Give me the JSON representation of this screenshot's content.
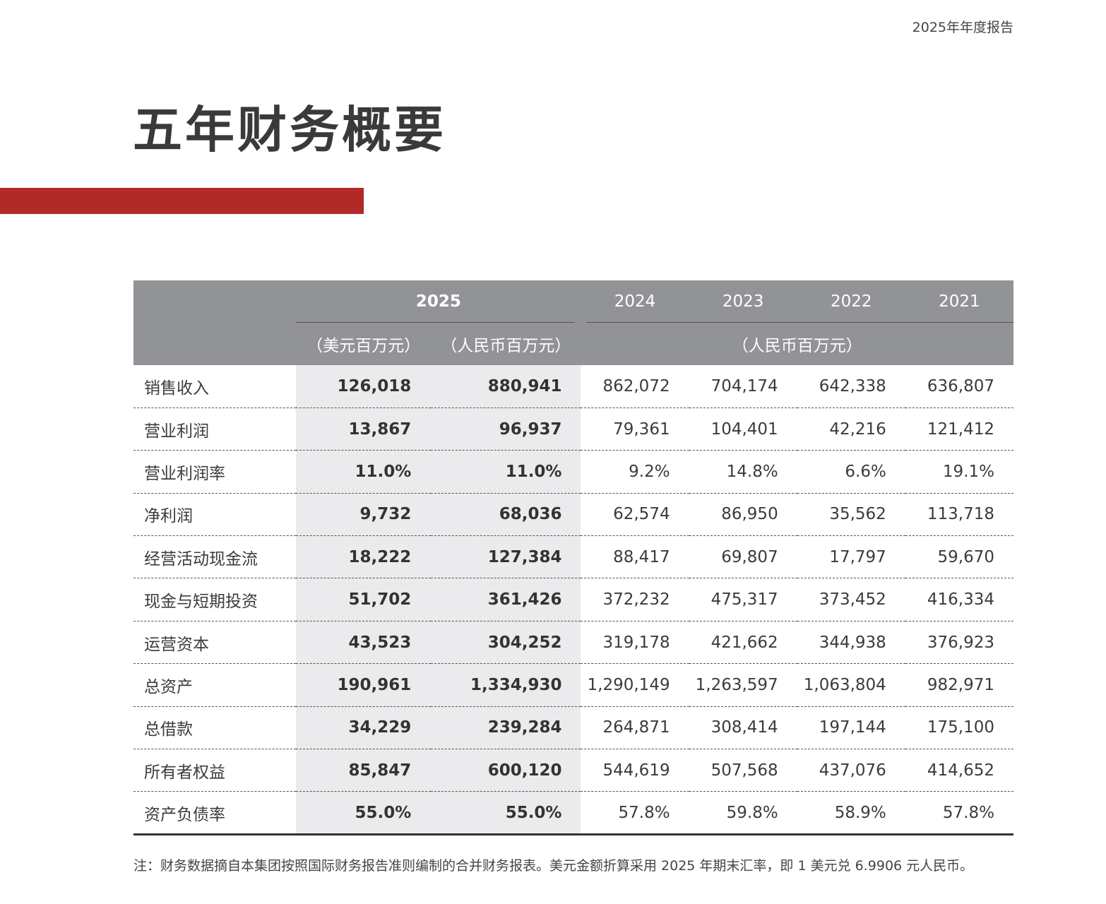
{
  "header": {
    "report_name": "2025年年度报告"
  },
  "title": "五年财务概要",
  "colors": {
    "accent": "#b22a27",
    "header_bg": "#929396",
    "highlight_bg": "#ebebed"
  },
  "table": {
    "year_current": "2025",
    "years_prior": [
      "2024",
      "2023",
      "2022",
      "2021"
    ],
    "unit_usd": "（美元百万元）",
    "unit_rmb": "（人民币百万元）",
    "unit_prior": "（人民币百万元）",
    "rows": [
      {
        "label": "销售收入",
        "values": [
          "126,018",
          "880,941",
          "862,072",
          "704,174",
          "642,338",
          "636,807"
        ]
      },
      {
        "label": "营业利润",
        "values": [
          "13,867",
          "96,937",
          "79,361",
          "104,401",
          "42,216",
          "121,412"
        ]
      },
      {
        "label": "营业利润率",
        "values": [
          "11.0%",
          "11.0%",
          "9.2%",
          "14.8%",
          "6.6%",
          "19.1%"
        ]
      },
      {
        "label": "净利润",
        "values": [
          "9,732",
          "68,036",
          "62,574",
          "86,950",
          "35,562",
          "113,718"
        ]
      },
      {
        "label": "经营活动现金流",
        "values": [
          "18,222",
          "127,384",
          "88,417",
          "69,807",
          "17,797",
          "59,670"
        ]
      },
      {
        "label": "现金与短期投资",
        "values": [
          "51,702",
          "361,426",
          "372,232",
          "475,317",
          "373,452",
          "416,334"
        ]
      },
      {
        "label": "运营资本",
        "values": [
          "43,523",
          "304,252",
          "319,178",
          "421,662",
          "344,938",
          "376,923"
        ]
      },
      {
        "label": "总资产",
        "values": [
          "190,961",
          "1,334,930",
          "1,290,149",
          "1,263,597",
          "1,063,804",
          "982,971"
        ]
      },
      {
        "label": "总借款",
        "values": [
          "34,229",
          "239,284",
          "264,871",
          "308,414",
          "197,144",
          "175,100"
        ]
      },
      {
        "label": "所有者权益",
        "values": [
          "85,847",
          "600,120",
          "544,619",
          "507,568",
          "437,076",
          "414,652"
        ]
      },
      {
        "label": "资产负债率",
        "values": [
          "55.0%",
          "55.0%",
          "57.8%",
          "59.8%",
          "58.9%",
          "57.8%"
        ]
      }
    ]
  },
  "note": "注：财务数据摘自本集团按照国际财务报告准则编制的合并财务报表。美元金额折算采用 2025 年期末汇率，即 1 美元兑 6.9906 元人民币。"
}
